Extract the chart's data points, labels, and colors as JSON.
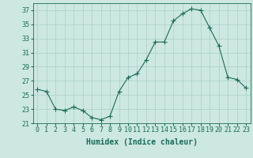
{
  "x": [
    0,
    1,
    2,
    3,
    4,
    5,
    6,
    7,
    8,
    9,
    10,
    11,
    12,
    13,
    14,
    15,
    16,
    17,
    18,
    19,
    20,
    21,
    22,
    23
  ],
  "y": [
    25.8,
    25.5,
    23.0,
    22.8,
    23.3,
    22.8,
    21.8,
    21.5,
    22.0,
    25.5,
    27.5,
    28.0,
    30.0,
    32.5,
    32.5,
    35.5,
    36.5,
    37.2,
    37.0,
    34.5,
    32.0,
    27.5,
    27.2,
    26.0
  ],
  "bg_color": "#cce8e0",
  "line_color": "#1a6b5a",
  "marker": "+",
  "marker_size": 4,
  "xlabel": "Humidex (Indice chaleur)",
  "ylim": [
    21,
    38
  ],
  "yticks": [
    21,
    23,
    25,
    27,
    29,
    31,
    33,
    35,
    37
  ],
  "xticks": [
    0,
    1,
    2,
    3,
    4,
    5,
    6,
    7,
    8,
    9,
    10,
    11,
    12,
    13,
    14,
    15,
    16,
    17,
    18,
    19,
    20,
    21,
    22,
    23
  ],
  "grid_color": "#aacfc8",
  "font_color": "#1a6b5a",
  "font_size": 6,
  "xlabel_fontsize": 7
}
